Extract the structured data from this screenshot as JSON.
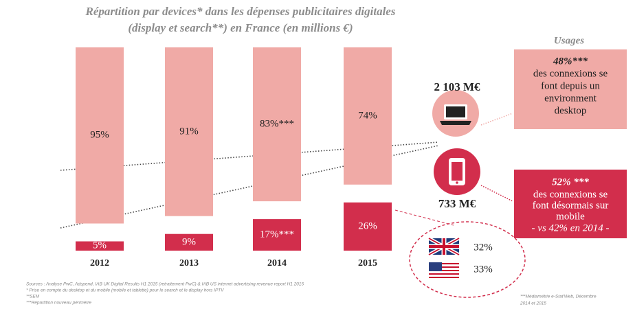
{
  "chart_data": {
    "type": "bar",
    "title": "Répartition par devices* dans les dépenses publicitaires  digitales",
    "subtitle": "(display et search**) en France (en millions €)",
    "categories": [
      "2012",
      "2013",
      "2014",
      "2015"
    ],
    "series": [
      {
        "color": "#d22e4c",
        "values": [
          5,
          9,
          17,
          26
        ],
        "value_labels": [
          "5%",
          "9%",
          "17%***",
          "26%"
        ]
      },
      {
        "color": "#f0aaa6",
        "values": [
          95,
          91,
          83,
          74
        ],
        "value_labels": [
          "95%",
          "91%",
          "83%***",
          "74%"
        ]
      }
    ],
    "annotations": {
      "usages": "Usages",
      "desktop_amount": "2 103 M€",
      "mobile_amount": "733 M€",
      "desktop_share": "48%***",
      "desktop_text": [
        "des connexions se",
        "font  depuis un",
        "environment",
        "desktop"
      ],
      "mobile_share": "52% ***",
      "mobile_text": [
        "des connexions se",
        "font désormais sur",
        "mobile"
      ],
      "mobile_compare": "- vs 42% en 2014 -",
      "uk_share": "32%",
      "us_share": "33%",
      "sources": [
        "Sources : Analyse PwC, Adspend, IAB UK Digital Results H1 2015 (retraitement PwC) & IAB US internet advertising revenue report H1 2015",
        "* Prise en compte du desktop et du mobile (mobile et tablette)  pour le search et le display hors IPTV",
        "**SEM",
        "***Répartition nouveau périmètre"
      ],
      "footnote": [
        "***Médiamétrie e-Stat'Web, Décembre",
        "2014 et 2015"
      ]
    }
  }
}
